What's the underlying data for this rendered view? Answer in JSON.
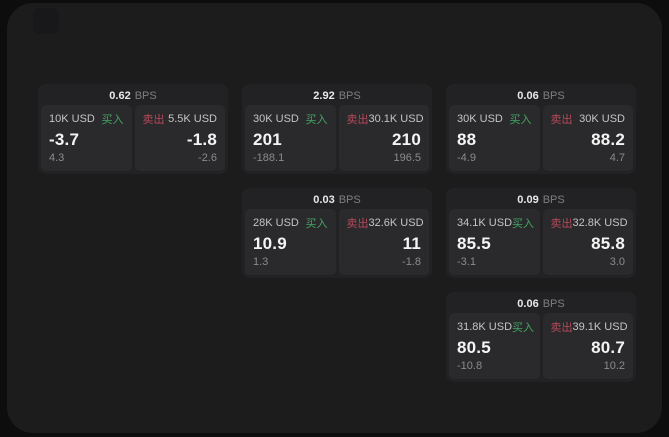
{
  "page": {
    "bg": "#0d0d0d",
    "panel_bg": "#1c1c1d",
    "card_bg": "#222224",
    "tile_bg": "#2a2a2c",
    "buy_color": "#43a563",
    "sell_color": "#b8485a",
    "bps_suffix": "BPS",
    "buy_label": "买入",
    "sell_label": "卖出"
  },
  "cards": [
    {
      "bps": "0.62",
      "buy": {
        "size": "10K USD",
        "value": "-3.7",
        "sub": "4.3"
      },
      "sell": {
        "size": "5.5K USD",
        "value": "-1.8",
        "sub": "-2.6"
      }
    },
    {
      "bps": "2.92",
      "buy": {
        "size": "30K USD",
        "value": "201",
        "sub": "-188.1"
      },
      "sell": {
        "size": "30.1K USD",
        "value": "210",
        "sub": "196.5"
      }
    },
    {
      "bps": "0.06",
      "buy": {
        "size": "30K USD",
        "value": "88",
        "sub": "-4.9"
      },
      "sell": {
        "size": "30K USD",
        "value": "88.2",
        "sub": "4.7"
      }
    },
    {
      "bps": "0.03",
      "buy": {
        "size": "28K USD",
        "value": "10.9",
        "sub": "1.3"
      },
      "sell": {
        "size": "32.6K USD",
        "value": "11",
        "sub": "-1.8"
      }
    },
    {
      "bps": "0.09",
      "buy": {
        "size": "34.1K USD",
        "value": "85.5",
        "sub": "-3.1"
      },
      "sell": {
        "size": "32.8K USD",
        "value": "85.8",
        "sub": "3.0"
      }
    },
    {
      "bps": "0.06",
      "buy": {
        "size": "31.8K USD",
        "value": "80.5",
        "sub": "-10.8"
      },
      "sell": {
        "size": "39.1K USD",
        "value": "80.7",
        "sub": "10.2"
      }
    }
  ]
}
